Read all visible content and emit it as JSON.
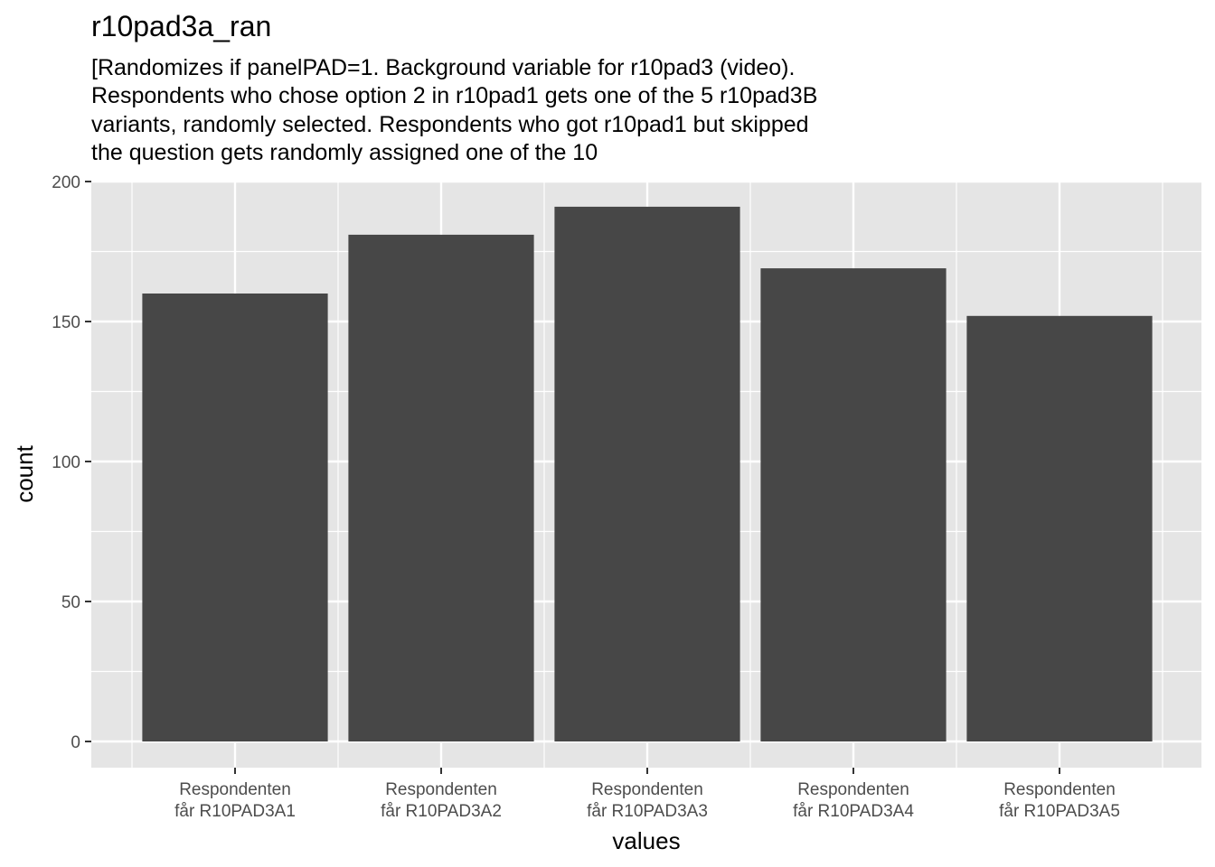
{
  "chart_data": {
    "type": "bar",
    "title": "r10pad3a_ran",
    "subtitle_lines": [
      "[Randomizes if panelPAD=1. Background variable for r10pad3 (video).",
      "Respondents who chose option 2 in r10pad1 gets one of the 5 r10pad3B",
      "variants, randomly selected. Respondents who got r10pad1 but skipped",
      "the question gets randomly assigned one of the 10"
    ],
    "xlabel": "values",
    "ylabel": "count",
    "categories": [
      [
        "Respondenten",
        "får R10PAD3A1"
      ],
      [
        "Respondenten",
        "får R10PAD3A2"
      ],
      [
        "Respondenten",
        "får R10PAD3A3"
      ],
      [
        "Respondenten",
        "får R10PAD3A4"
      ],
      [
        "Respondenten",
        "får R10PAD3A5"
      ]
    ],
    "values": [
      160,
      181,
      191,
      169,
      152
    ],
    "ylim": [
      0,
      200
    ],
    "yticks": [
      0,
      50,
      100,
      150,
      200
    ],
    "grid": true,
    "colors": {
      "panel_background": "#e5e5e5",
      "grid": "#ffffff",
      "bar": "#474747",
      "tick": "#333333"
    }
  }
}
